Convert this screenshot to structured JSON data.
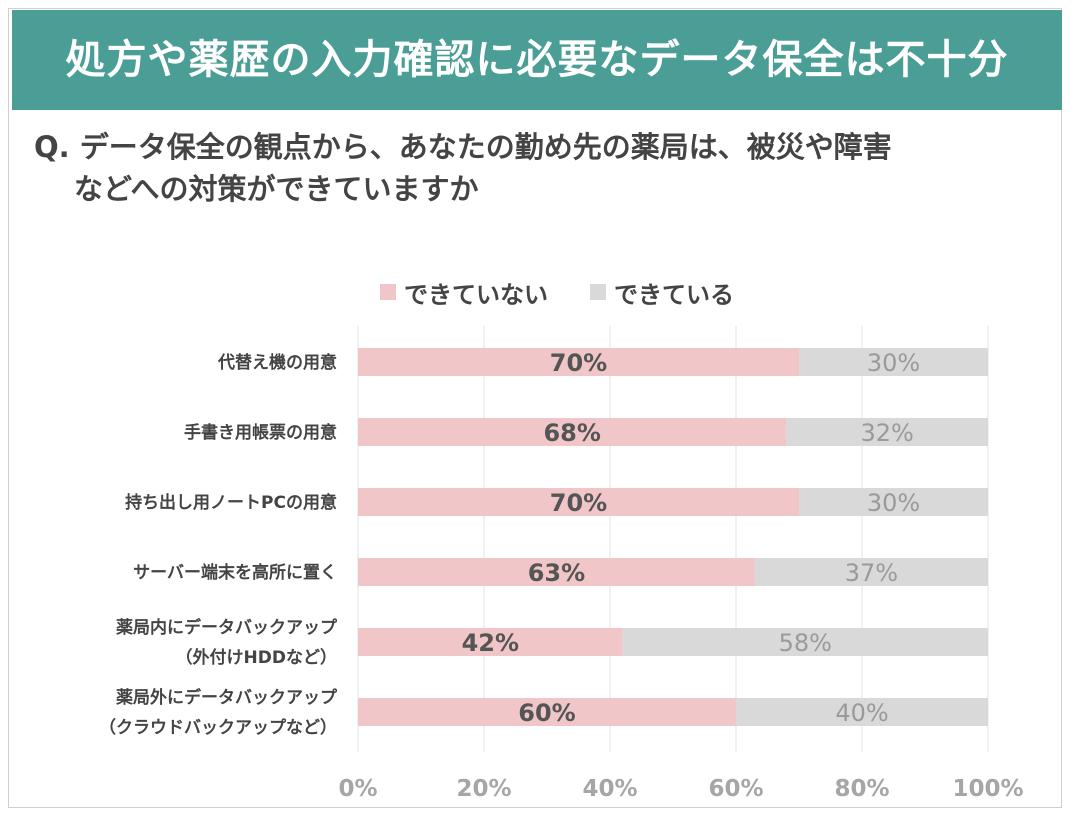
{
  "header": {
    "title": "処方や薬歴の入力確認に必要なデータ保全は不十分"
  },
  "question": {
    "line1": "Q. データ保全の観点から、あなたの勤め先の薬局は、被災や障害",
    "line2": "などへの対策ができていますか"
  },
  "colors": {
    "banner": "#4a9e95",
    "not_done": "#f0c6c9",
    "done": "#d9d9d9"
  },
  "chart_data": {
    "type": "bar",
    "orientation": "horizontal",
    "stacked": true,
    "categories": [
      [
        "代替え機の用意"
      ],
      [
        "手書き用帳票の用意"
      ],
      [
        "持ち出し用ノートPCの用意"
      ],
      [
        "サーバー端末を高所に置く"
      ],
      [
        "薬局内にデータバックアップ",
        "（外付けHDDなど）"
      ],
      [
        "薬局外にデータバックアップ",
        "（クラウドバックアップなど）"
      ]
    ],
    "series": [
      {
        "name": "できていない",
        "color": "#f0c6c9",
        "values": [
          70,
          68,
          70,
          63,
          42,
          60
        ],
        "labels": [
          "70%",
          "68%",
          "70%",
          "63%",
          "42%",
          "60%"
        ]
      },
      {
        "name": "できている",
        "color": "#d9d9d9",
        "values": [
          30,
          32,
          30,
          37,
          58,
          40
        ],
        "labels": [
          "30%",
          "32%",
          "30%",
          "37%",
          "58%",
          "40%"
        ]
      }
    ],
    "xlim": [
      0,
      100
    ],
    "xticks": [
      "0%",
      "20%",
      "40%",
      "60%",
      "80%",
      "100%"
    ],
    "grid": true,
    "legend_position": "top"
  }
}
